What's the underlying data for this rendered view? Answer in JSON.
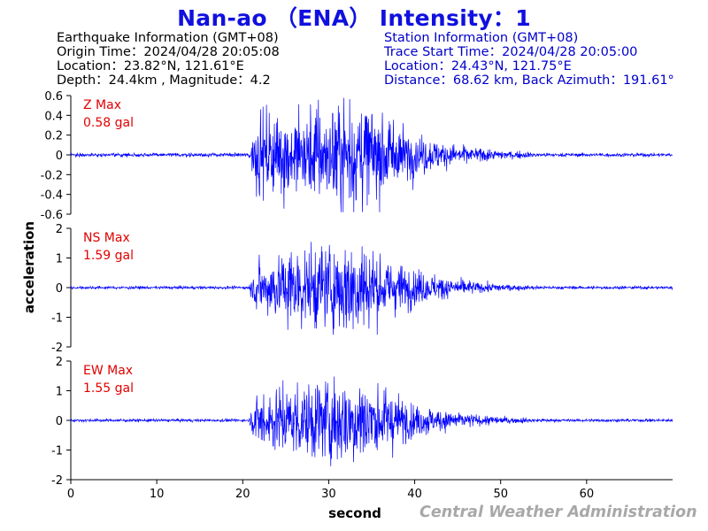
{
  "title": "Nan-ao （ENA） Intensity：1",
  "earthquake_info": {
    "header": "Earthquake Information  (GMT+08)",
    "origin_time": "Origin Time：2024/04/28 20:05:08",
    "location": "Location：23.82°N, 121.61°E",
    "depth_magnitude": "Depth：24.4km , Magnitude：4.2"
  },
  "station_info": {
    "header": "Station Information  (GMT+08)",
    "trace_start": "Trace Start Time：2024/04/28 20:05:00",
    "location": "Location：24.43°N, 121.75°E",
    "distance": "Distance：68.62 km, Back Azimuth：191.61°"
  },
  "watermark": "Central Weather Administration",
  "colors": {
    "title": "#1010e0",
    "trace": "#0000ff",
    "max_label": "#e00000",
    "station_text": "#0000cc",
    "watermark": "#a8a8a8"
  },
  "chart_data": {
    "type": "line",
    "xlabel": "second",
    "ylabel": "acceleration",
    "xlim": [
      0,
      70
    ],
    "xticks": [
      0,
      10,
      20,
      30,
      40,
      50,
      60
    ],
    "panels": [
      {
        "name": "Z",
        "max_label": "Z Max",
        "max_value": "0.58 gal",
        "peak": 0.58,
        "ylim": [
          -0.6,
          0.6
        ],
        "yticks": [
          -0.6,
          -0.4,
          -0.2,
          0,
          0.2,
          0.4,
          0.6
        ],
        "ytick_labels": [
          "-0.6",
          "-0.4",
          "-0.2",
          "0",
          "0.2",
          "0.4",
          "0.6"
        ]
      },
      {
        "name": "NS",
        "max_label": "NS Max",
        "max_value": "1.59 gal",
        "peak": 1.59,
        "ylim": [
          -2,
          2
        ],
        "yticks": [
          -2,
          -1,
          0,
          1,
          2
        ],
        "ytick_labels": [
          "-2",
          "-1",
          "0",
          "1",
          "2"
        ]
      },
      {
        "name": "EW",
        "max_label": "EW Max",
        "max_value": "1.55 gal",
        "peak": 1.55,
        "ylim": [
          -2,
          2
        ],
        "yticks": [
          -2,
          -1,
          0,
          1,
          2
        ],
        "ytick_labels": [
          "-2",
          "-1",
          "0",
          "1",
          "2"
        ]
      }
    ],
    "p_wave_onset_s": 20.6,
    "peak_time_s": 31.5,
    "signal_end_s": 55
  }
}
